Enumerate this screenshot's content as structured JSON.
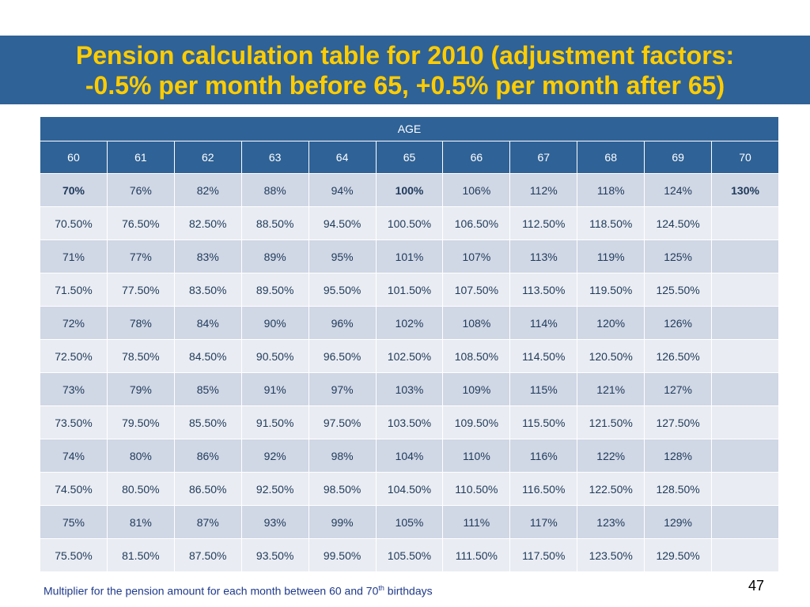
{
  "title": {
    "line1": "Pension calculation table for 2010 (adjustment factors:",
    "line2": "-0.5% per month before 65, +0.5% per month after 65)"
  },
  "table": {
    "group_header": "AGE",
    "ages": [
      "60",
      "61",
      "62",
      "63",
      "64",
      "65",
      "66",
      "67",
      "68",
      "69",
      "70"
    ],
    "rows": [
      [
        "70%",
        "76%",
        "82%",
        "88%",
        "94%",
        "100%",
        "106%",
        "112%",
        "118%",
        "124%",
        "130%"
      ],
      [
        "70.50%",
        "76.50%",
        "82.50%",
        "88.50%",
        "94.50%",
        "100.50%",
        "106.50%",
        "112.50%",
        "118.50%",
        "124.50%",
        ""
      ],
      [
        "71%",
        "77%",
        "83%",
        "89%",
        "95%",
        "101%",
        "107%",
        "113%",
        "119%",
        "125%",
        ""
      ],
      [
        "71.50%",
        "77.50%",
        "83.50%",
        "89.50%",
        "95.50%",
        "101.50%",
        "107.50%",
        "113.50%",
        "119.50%",
        "125.50%",
        ""
      ],
      [
        "72%",
        "78%",
        "84%",
        "90%",
        "96%",
        "102%",
        "108%",
        "114%",
        "120%",
        "126%",
        ""
      ],
      [
        "72.50%",
        "78.50%",
        "84.50%",
        "90.50%",
        "96.50%",
        "102.50%",
        "108.50%",
        "114.50%",
        "120.50%",
        "126.50%",
        ""
      ],
      [
        "73%",
        "79%",
        "85%",
        "91%",
        "97%",
        "103%",
        "109%",
        "115%",
        "121%",
        "127%",
        ""
      ],
      [
        "73.50%",
        "79.50%",
        "85.50%",
        "91.50%",
        "97.50%",
        "103.50%",
        "109.50%",
        "115.50%",
        "121.50%",
        "127.50%",
        ""
      ],
      [
        "74%",
        "80%",
        "86%",
        "92%",
        "98%",
        "104%",
        "110%",
        "116%",
        "122%",
        "128%",
        ""
      ],
      [
        "74.50%",
        "80.50%",
        "86.50%",
        "92.50%",
        "98.50%",
        "104.50%",
        "110.50%",
        "116.50%",
        "122.50%",
        "128.50%",
        ""
      ],
      [
        "75%",
        "81%",
        "87%",
        "93%",
        "99%",
        "105%",
        "111%",
        "117%",
        "123%",
        "129%",
        ""
      ],
      [
        "75.50%",
        "81.50%",
        "87.50%",
        "93.50%",
        "99.50%",
        "105.50%",
        "111.50%",
        "117.50%",
        "123.50%",
        "129.50%",
        ""
      ]
    ],
    "highlighted_cells": [
      "0-0",
      "0-5",
      "0-10"
    ]
  },
  "footnote": {
    "text_before": "Multiplier for the pension amount for each month between 60 and 70",
    "superscript": "th",
    "text_after": " birthdays"
  },
  "page_number": "47",
  "colors": {
    "title_band": "#2f6296",
    "title_text": "#ffcc00",
    "highlight_text": "#d42a12",
    "row_odd": "#d0d7e5",
    "row_even": "#e9ecf2"
  }
}
